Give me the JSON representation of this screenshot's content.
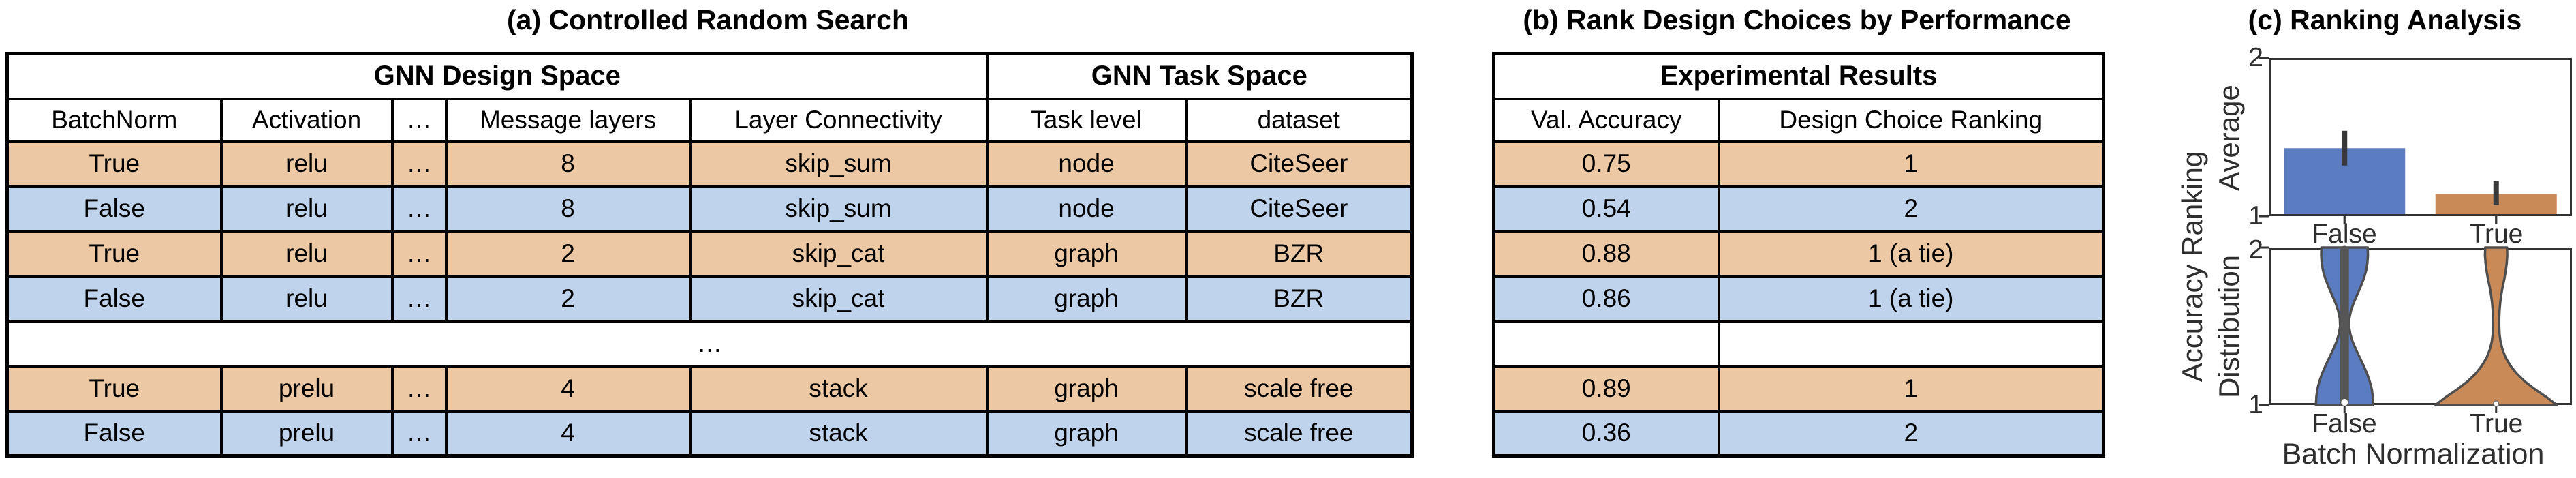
{
  "panel_a": {
    "title": "(a) Controlled Random Search",
    "table": {
      "group_headers": [
        "GNN Design Space",
        "GNN Task Space"
      ],
      "columns": [
        "BatchNorm",
        "Activation",
        "…",
        "Message layers",
        "Layer Connectivity",
        "Task level",
        "dataset"
      ],
      "rows": [
        {
          "highlight": "orange",
          "cells": [
            "True",
            "relu",
            "…",
            "8",
            "skip_sum",
            "node",
            "CiteSeer"
          ]
        },
        {
          "highlight": "blue",
          "cells": [
            "False",
            "relu",
            "…",
            "8",
            "skip_sum",
            "node",
            "CiteSeer"
          ]
        },
        {
          "highlight": "orange",
          "cells": [
            "True",
            "relu",
            "…",
            "2",
            "skip_cat",
            "graph",
            "BZR"
          ]
        },
        {
          "highlight": "blue",
          "cells": [
            "False",
            "relu",
            "…",
            "2",
            "skip_cat",
            "graph",
            "BZR"
          ]
        },
        {
          "highlight": "none",
          "ellipsis": "…"
        },
        {
          "highlight": "orange",
          "cells": [
            "True",
            "prelu",
            "…",
            "4",
            "stack",
            "graph",
            "scale free"
          ]
        },
        {
          "highlight": "blue",
          "cells": [
            "False",
            "prelu",
            "…",
            "4",
            "stack",
            "graph",
            "scale free"
          ]
        }
      ]
    }
  },
  "panel_b": {
    "title": "(b) Rank Design Choices by Performance",
    "table": {
      "group_header": "Experimental Results",
      "columns": [
        "Val. Accuracy",
        "Design Choice Ranking"
      ],
      "rows": [
        {
          "highlight": "orange",
          "cells": [
            "0.75",
            "1"
          ]
        },
        {
          "highlight": "blue",
          "cells": [
            "0.54",
            "2"
          ]
        },
        {
          "highlight": "orange",
          "cells": [
            "0.88",
            "1 (a tie)"
          ]
        },
        {
          "highlight": "blue",
          "cells": [
            "0.86",
            "1 (a tie)"
          ]
        },
        {
          "highlight": "none",
          "cells": [
            "",
            ""
          ]
        },
        {
          "highlight": "orange",
          "cells": [
            "0.89",
            "1"
          ]
        },
        {
          "highlight": "blue",
          "cells": [
            "0.36",
            "2"
          ]
        }
      ]
    }
  },
  "panel_c": {
    "ylabel_outer": "Accuracy Ranking"
  },
  "chart_data": [
    {
      "type": "bar",
      "title": "(c) Ranking Analysis",
      "categories": [
        "False",
        "True"
      ],
      "values": [
        1.43,
        1.14
      ],
      "error_low": [
        1.32,
        1.07
      ],
      "error_high": [
        1.54,
        1.22
      ],
      "xlabel": "",
      "ylabel": "Average",
      "ylim": [
        1,
        2
      ],
      "yticks": [
        1,
        2
      ],
      "colors": [
        "#5c7cc2",
        "#c98a58"
      ],
      "error_color": "#3a3a3a",
      "legend": "none",
      "grid": false
    },
    {
      "type": "violin",
      "categories": [
        "False",
        "True"
      ],
      "xlabel": "Batch Normalization",
      "ylabel": "Distribution",
      "ylim": [
        1,
        2
      ],
      "yticks": [
        1,
        2
      ],
      "colors": [
        "#5c7cc2",
        "#c98a58"
      ],
      "outline_color": "#4e4e4e",
      "grid": false,
      "violins": [
        {
          "category": "False",
          "inner_band": true,
          "profile": [
            [
              1.0,
              42
            ],
            [
              1.05,
              41.5
            ],
            [
              1.1,
              40
            ],
            [
              1.15,
              37
            ],
            [
              1.2,
              33
            ],
            [
              1.25,
              28
            ],
            [
              1.3,
              22.5
            ],
            [
              1.35,
              17
            ],
            [
              1.4,
              12
            ],
            [
              1.45,
              8.5
            ],
            [
              1.5,
              6.5
            ],
            [
              1.55,
              7
            ],
            [
              1.6,
              9.5
            ],
            [
              1.65,
              13.5
            ],
            [
              1.7,
              18.5
            ],
            [
              1.75,
              23.5
            ],
            [
              1.8,
              28
            ],
            [
              1.85,
              31.5
            ],
            [
              1.9,
              33.5
            ],
            [
              1.95,
              34.3
            ],
            [
              2.0,
              34
            ]
          ]
        },
        {
          "category": "True",
          "inner_band": false,
          "profile": [
            [
              1.0,
              89
            ],
            [
              1.05,
              74
            ],
            [
              1.1,
              57
            ],
            [
              1.15,
              42
            ],
            [
              1.2,
              30
            ],
            [
              1.25,
              21
            ],
            [
              1.3,
              14
            ],
            [
              1.35,
              9.5
            ],
            [
              1.4,
              6.5
            ],
            [
              1.45,
              5
            ],
            [
              1.5,
              4.5
            ],
            [
              1.55,
              4.5
            ],
            [
              1.6,
              5
            ],
            [
              1.65,
              6
            ],
            [
              1.7,
              7.5
            ],
            [
              1.75,
              9.5
            ],
            [
              1.8,
              12
            ],
            [
              1.85,
              14
            ],
            [
              1.9,
              15.5
            ],
            [
              1.95,
              16.3
            ],
            [
              2.0,
              16
            ]
          ]
        }
      ]
    }
  ]
}
